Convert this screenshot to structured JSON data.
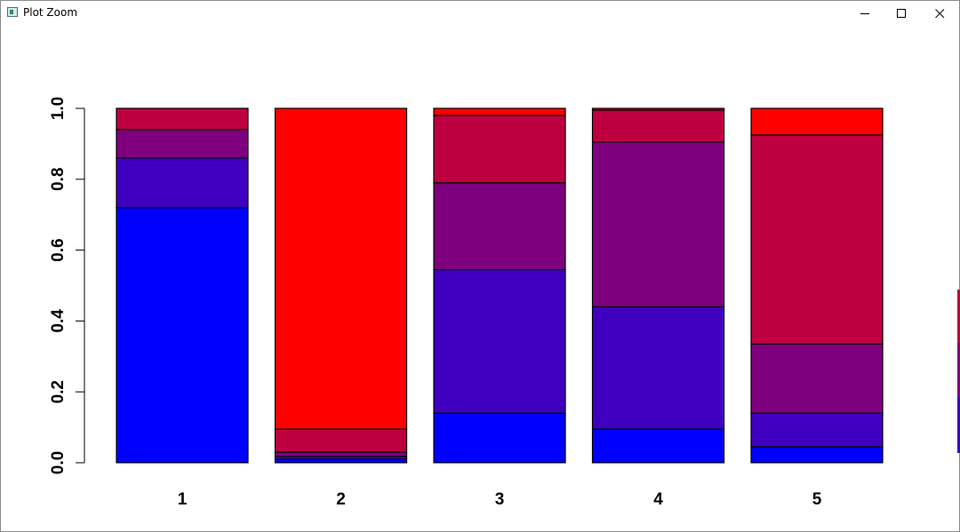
{
  "window": {
    "title": "Plot Zoom",
    "icon": "plot-window-icon",
    "controls": [
      "minimize-icon",
      "maximize-icon",
      "close-icon"
    ]
  },
  "colors": {
    "segments": [
      "#0000ff",
      "#3f00c0",
      "#7f007f",
      "#bf0040",
      "#ff0000"
    ],
    "bar_border": "#000000",
    "background": "#ffffff"
  },
  "chart_data": {
    "type": "bar",
    "stacked": true,
    "categories": [
      "1",
      "2",
      "3",
      "4",
      "5"
    ],
    "series": [
      {
        "values": [
          0.72,
          0.01,
          0.14,
          0.095,
          0.045
        ]
      },
      {
        "values": [
          0.14,
          0.008,
          0.405,
          0.345,
          0.095
        ]
      },
      {
        "values": [
          0.08,
          0.012,
          0.245,
          0.465,
          0.195
        ]
      },
      {
        "values": [
          0.06,
          0.065,
          0.19,
          0.09,
          0.59
        ]
      },
      {
        "values": [
          0.0,
          0.905,
          0.02,
          0.005,
          0.075
        ]
      }
    ],
    "ylim": [
      0,
      1
    ],
    "yticks": [
      "0.0",
      "0.2",
      "0.4",
      "0.6",
      "0.8",
      "1.0"
    ],
    "xlabel": "",
    "ylabel": "",
    "title": "",
    "grid": false,
    "legend": "none"
  }
}
